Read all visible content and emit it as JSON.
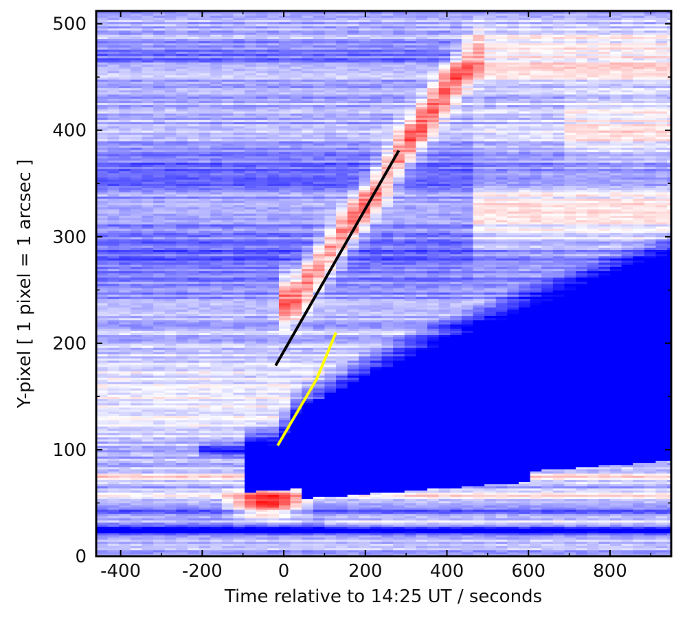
{
  "chart_data": {
    "type": "heatmap",
    "title": "",
    "xlabel": "Time relative to 14:25 UT / seconds",
    "ylabel": "Y-pixel [ 1 pixel = 1 arcsec ]",
    "xlim": [
      -460,
      950
    ],
    "ylim": [
      0,
      512
    ],
    "x_ticks": [
      -400,
      -200,
      0,
      200,
      400,
      600,
      800
    ],
    "y_ticks": [
      0,
      100,
      200,
      300,
      400,
      500
    ],
    "grid": false,
    "colormap": "blue-white-red (diverging)",
    "colors": {
      "negative": "#0000ff",
      "zero": "#ffffff",
      "positive": "#ff0000",
      "frame": "#000000"
    },
    "features": [
      {
        "description": "saturated blue region (dimming)",
        "x_start": -90,
        "y_low_start": 60,
        "y_high_start": 100,
        "x_end": 950,
        "y_low_end": 90,
        "y_high_end": 280
      },
      {
        "description": "red ridge (propagating brightening)",
        "points": [
          [
            20,
            240
          ],
          [
            180,
            320
          ],
          [
            320,
            395
          ],
          [
            400,
            440
          ],
          [
            470,
            470
          ]
        ]
      },
      {
        "description": "red band near bottom",
        "y": 50,
        "x_range": [
          -460,
          950
        ]
      },
      {
        "description": "dark blue band near bottom",
        "y": 25,
        "x_range": [
          -460,
          950
        ]
      }
    ],
    "overlays": [
      {
        "color": "#000000",
        "points": [
          [
            -20,
            179
          ],
          [
            282,
            381
          ]
        ]
      },
      {
        "color": "#ffff00",
        "points": [
          [
            -15,
            104
          ],
          [
            80,
            166
          ],
          [
            128,
            210
          ]
        ]
      }
    ]
  }
}
